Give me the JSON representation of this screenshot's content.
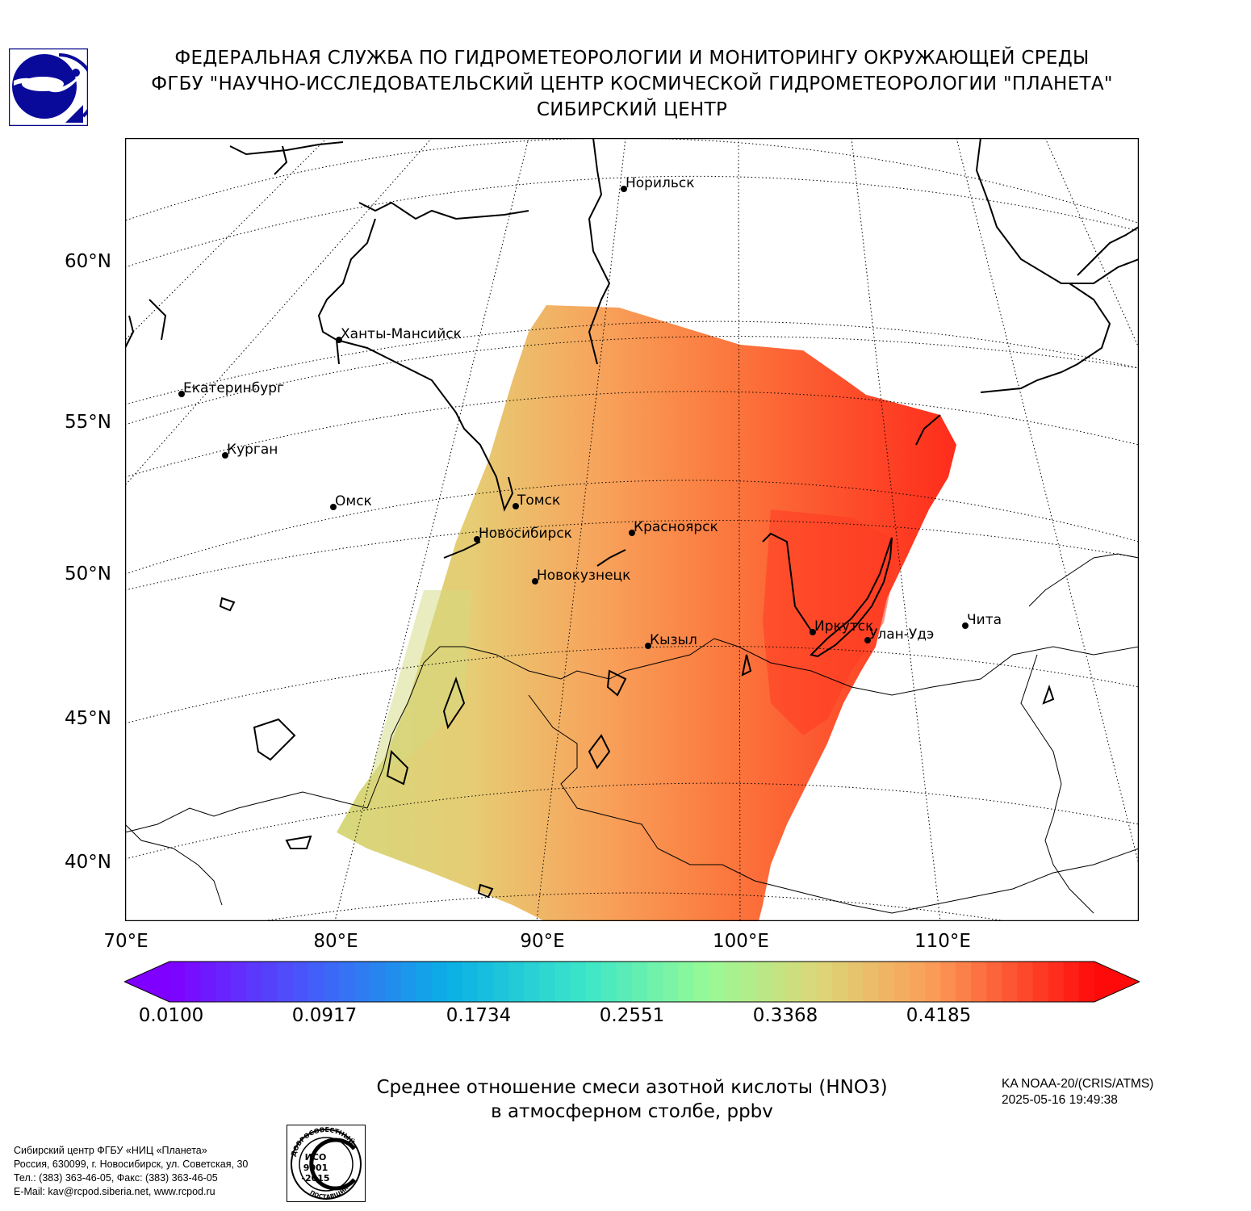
{
  "header": {
    "line1": "ФЕДЕРАЛЬНАЯ СЛУЖБА ПО ГИДРОМЕТЕОРОЛОГИИ И МОНИТОРИНГУ ОКРУЖАЮЩЕЙ СРЕДЫ",
    "line2": "ФГБУ \"НАУЧНО-ИССЛЕДОВАТЕЛЬСКИЙ ЦЕНТР КОСМИЧЕСКОЙ ГИДРОМЕТЕОРОЛОГИИ \"ПЛАНЕТА\"",
    "line3": "СИБИРСКИЙ ЦЕНТР"
  },
  "map": {
    "lat_labels": [
      "60°N",
      "55°N",
      "50°N",
      "45°N",
      "40°N"
    ],
    "lon_labels": [
      "70°E",
      "80°E",
      "90°E",
      "100°E",
      "110°E"
    ],
    "cities": [
      {
        "name": "Норильск",
        "lon": 88.2,
        "lat": 69.35
      },
      {
        "name": "Ханты-Мансийск",
        "lon": 69.0,
        "lat": 61.0
      },
      {
        "name": "Екатеринбург",
        "lon": 60.6,
        "lat": 56.8
      },
      {
        "name": "Курган",
        "lon": 65.3,
        "lat": 55.4
      },
      {
        "name": "Омск",
        "lon": 73.4,
        "lat": 55.0
      },
      {
        "name": "Томск",
        "lon": 84.95,
        "lat": 56.5
      },
      {
        "name": "Новосибирск",
        "lon": 82.9,
        "lat": 55.0
      },
      {
        "name": "Красноярск",
        "lon": 92.9,
        "lat": 56.0
      },
      {
        "name": "Новокузнецк",
        "lon": 87.1,
        "lat": 53.75
      },
      {
        "name": "Кызыл",
        "lon": 94.45,
        "lat": 51.7
      },
      {
        "name": "Иркутск",
        "lon": 104.3,
        "lat": 52.3
      },
      {
        "name": "Улан-Удэ",
        "lon": 107.6,
        "lat": 51.8
      },
      {
        "name": "Чита",
        "lon": 113.5,
        "lat": 52.0
      }
    ],
    "colors": {
      "low": "#d9d87e",
      "mid": "#f6a35a",
      "high": "#fd4a2a",
      "peak": "#ff2a1a"
    }
  },
  "colorbar": {
    "ticks": [
      "0.0100",
      "0.0917",
      "0.1734",
      "0.2551",
      "0.3368",
      "0.4185"
    ],
    "min": 0.01,
    "max": 0.5
  },
  "title": {
    "line1": "Среднее отношение смеси азотной кислоты (HNO3)",
    "line2": "в атмосферном столбе, ppbv"
  },
  "satellite": {
    "line1": "KA NOAA-20/(CRIS/ATMS)",
    "line2": "2025-05-16 19:49:38"
  },
  "organization": {
    "line1": "Сибирский центр ФГБУ «НИЦ «Планета»",
    "line2": "Россия, 630099, г. Новосибирск, ул. Советская, 30",
    "line3": "Тел.: (383) 363-46-05, Факс: (383) 363-46-05",
    "line4": "E-Mail: kav@rcpod.siberia.net, www.rcpod.ru"
  },
  "iso": {
    "arc_top": "ДОБРОСОВЕСТНЫЙ",
    "line1": "ИСО",
    "line2": "9001",
    "line3": "-2015",
    "arc_bottom": "ПОСТАВЩИК"
  }
}
